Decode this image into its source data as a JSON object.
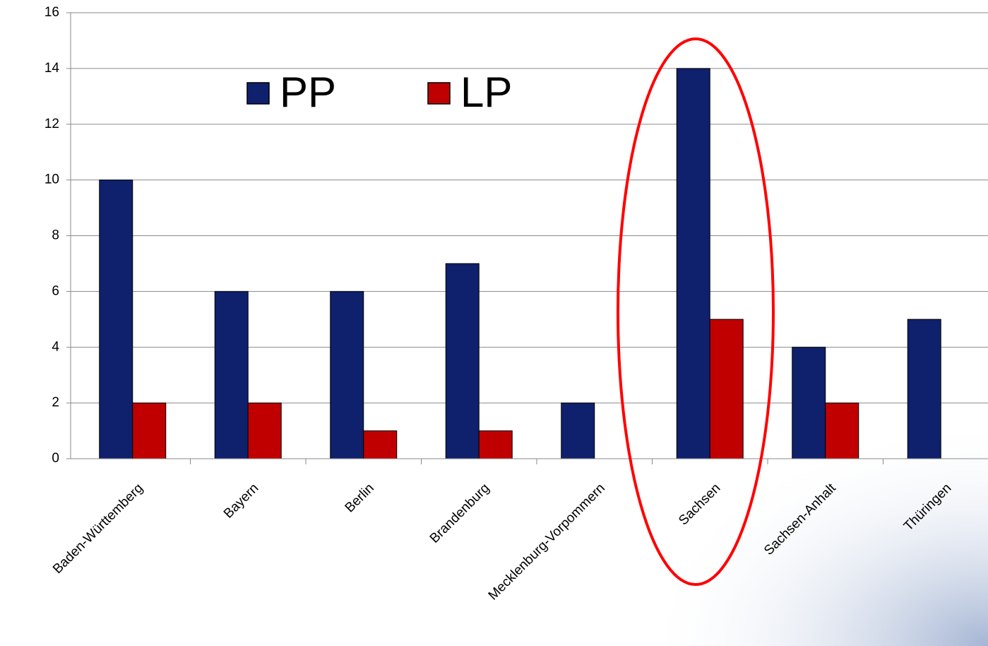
{
  "chart_data": {
    "type": "bar",
    "categories": [
      "Baden-Württemberg",
      "Bayern",
      "Berlin",
      "Brandenburg",
      "Mecklenburg-Vorpommern",
      "Sachsen",
      "Sachsen-Anhalt",
      "Thüringen"
    ],
    "series": [
      {
        "name": "PP",
        "color": "#0f206c",
        "values": [
          10,
          6,
          6,
          7,
          2,
          14,
          4,
          5
        ]
      },
      {
        "name": "LP",
        "color": "#c00000",
        "values": [
          2,
          2,
          1,
          1,
          0,
          5,
          2,
          0
        ]
      }
    ],
    "ylim": [
      0,
      16
    ],
    "yticks": [
      0,
      2,
      4,
      6,
      8,
      10,
      12,
      14,
      16
    ],
    "grid": true
  }
}
